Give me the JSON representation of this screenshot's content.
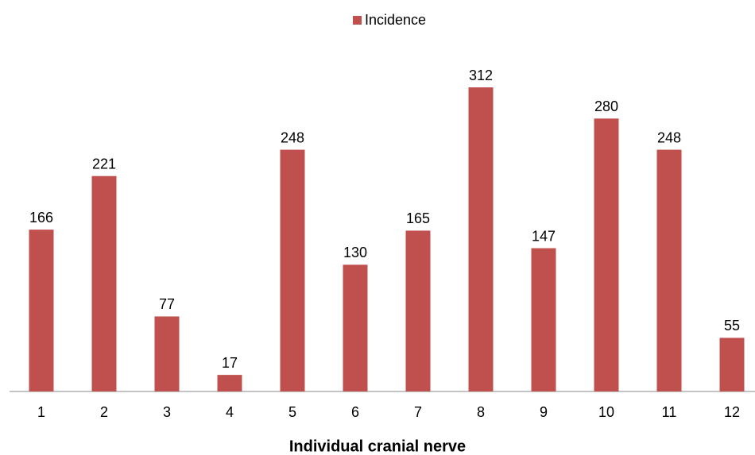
{
  "chart_data": {
    "type": "bar",
    "x_label": "Individual cranial nerve",
    "categories": [
      "1",
      "2",
      "3",
      "4",
      "5",
      "6",
      "7",
      "8",
      "9",
      "10",
      "11",
      "12"
    ],
    "series": [
      {
        "name": "Incidence",
        "color": "#c0504d",
        "values": [
          166,
          221,
          77,
          17,
          248,
          130,
          165,
          312,
          147,
          280,
          248,
          55
        ]
      }
    ],
    "legend": "top"
  }
}
